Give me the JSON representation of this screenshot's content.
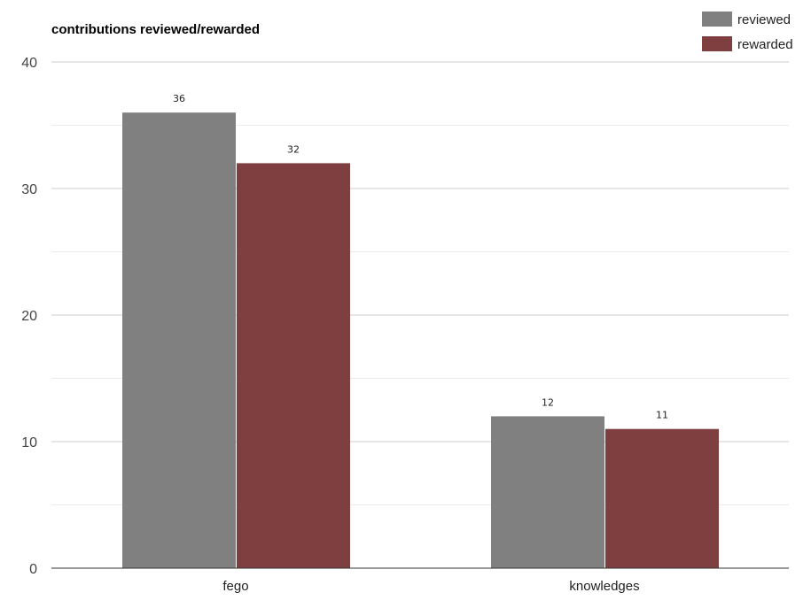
{
  "colors": {
    "reviewed": "#808080",
    "rewarded": "#7f3f41",
    "gridline": "#cccccc",
    "minor_gridline": "#ebebeb",
    "baseline": "#333333"
  },
  "chart_data": {
    "type": "bar",
    "title": "contributions reviewed/rewarded",
    "xlabel": "",
    "ylabel": "",
    "categories": [
      "fego",
      "knowledges"
    ],
    "series": [
      {
        "name": "reviewed",
        "values": [
          36,
          12
        ]
      },
      {
        "name": "rewarded",
        "values": [
          32,
          11
        ]
      }
    ],
    "ylim": [
      0,
      40
    ],
    "yticks": [
      "0",
      "10",
      "20",
      "30",
      "40"
    ],
    "minor_gridlines": true,
    "data_labels": true,
    "legend_position": "top-right"
  }
}
